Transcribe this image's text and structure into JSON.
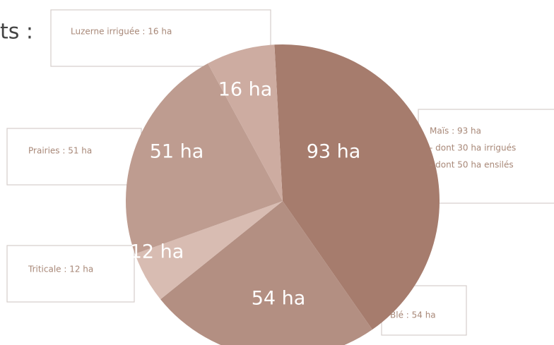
{
  "chart_data": {
    "type": "pie",
    "title": "ts :",
    "categories": [
      "Maïs : 93 ha",
      "Blé : 54 ha",
      "Triticale : 12 ha",
      "Prairies : 51 ha",
      "Luzerne irriguée : 16 ha"
    ],
    "values": [
      93,
      54,
      12,
      51,
      16
    ],
    "value_labels": [
      "93 ha",
      "54 ha",
      "12 ha",
      "51 ha",
      "16 ha"
    ],
    "colors": [
      "#a67c6d",
      "#b38f82",
      "#d8bcb2",
      "#be9c90",
      "#cdaca1"
    ],
    "annotations": [
      "- dont 30 ha irrigués",
      "- dont 50 ha ensilés"
    ]
  }
}
